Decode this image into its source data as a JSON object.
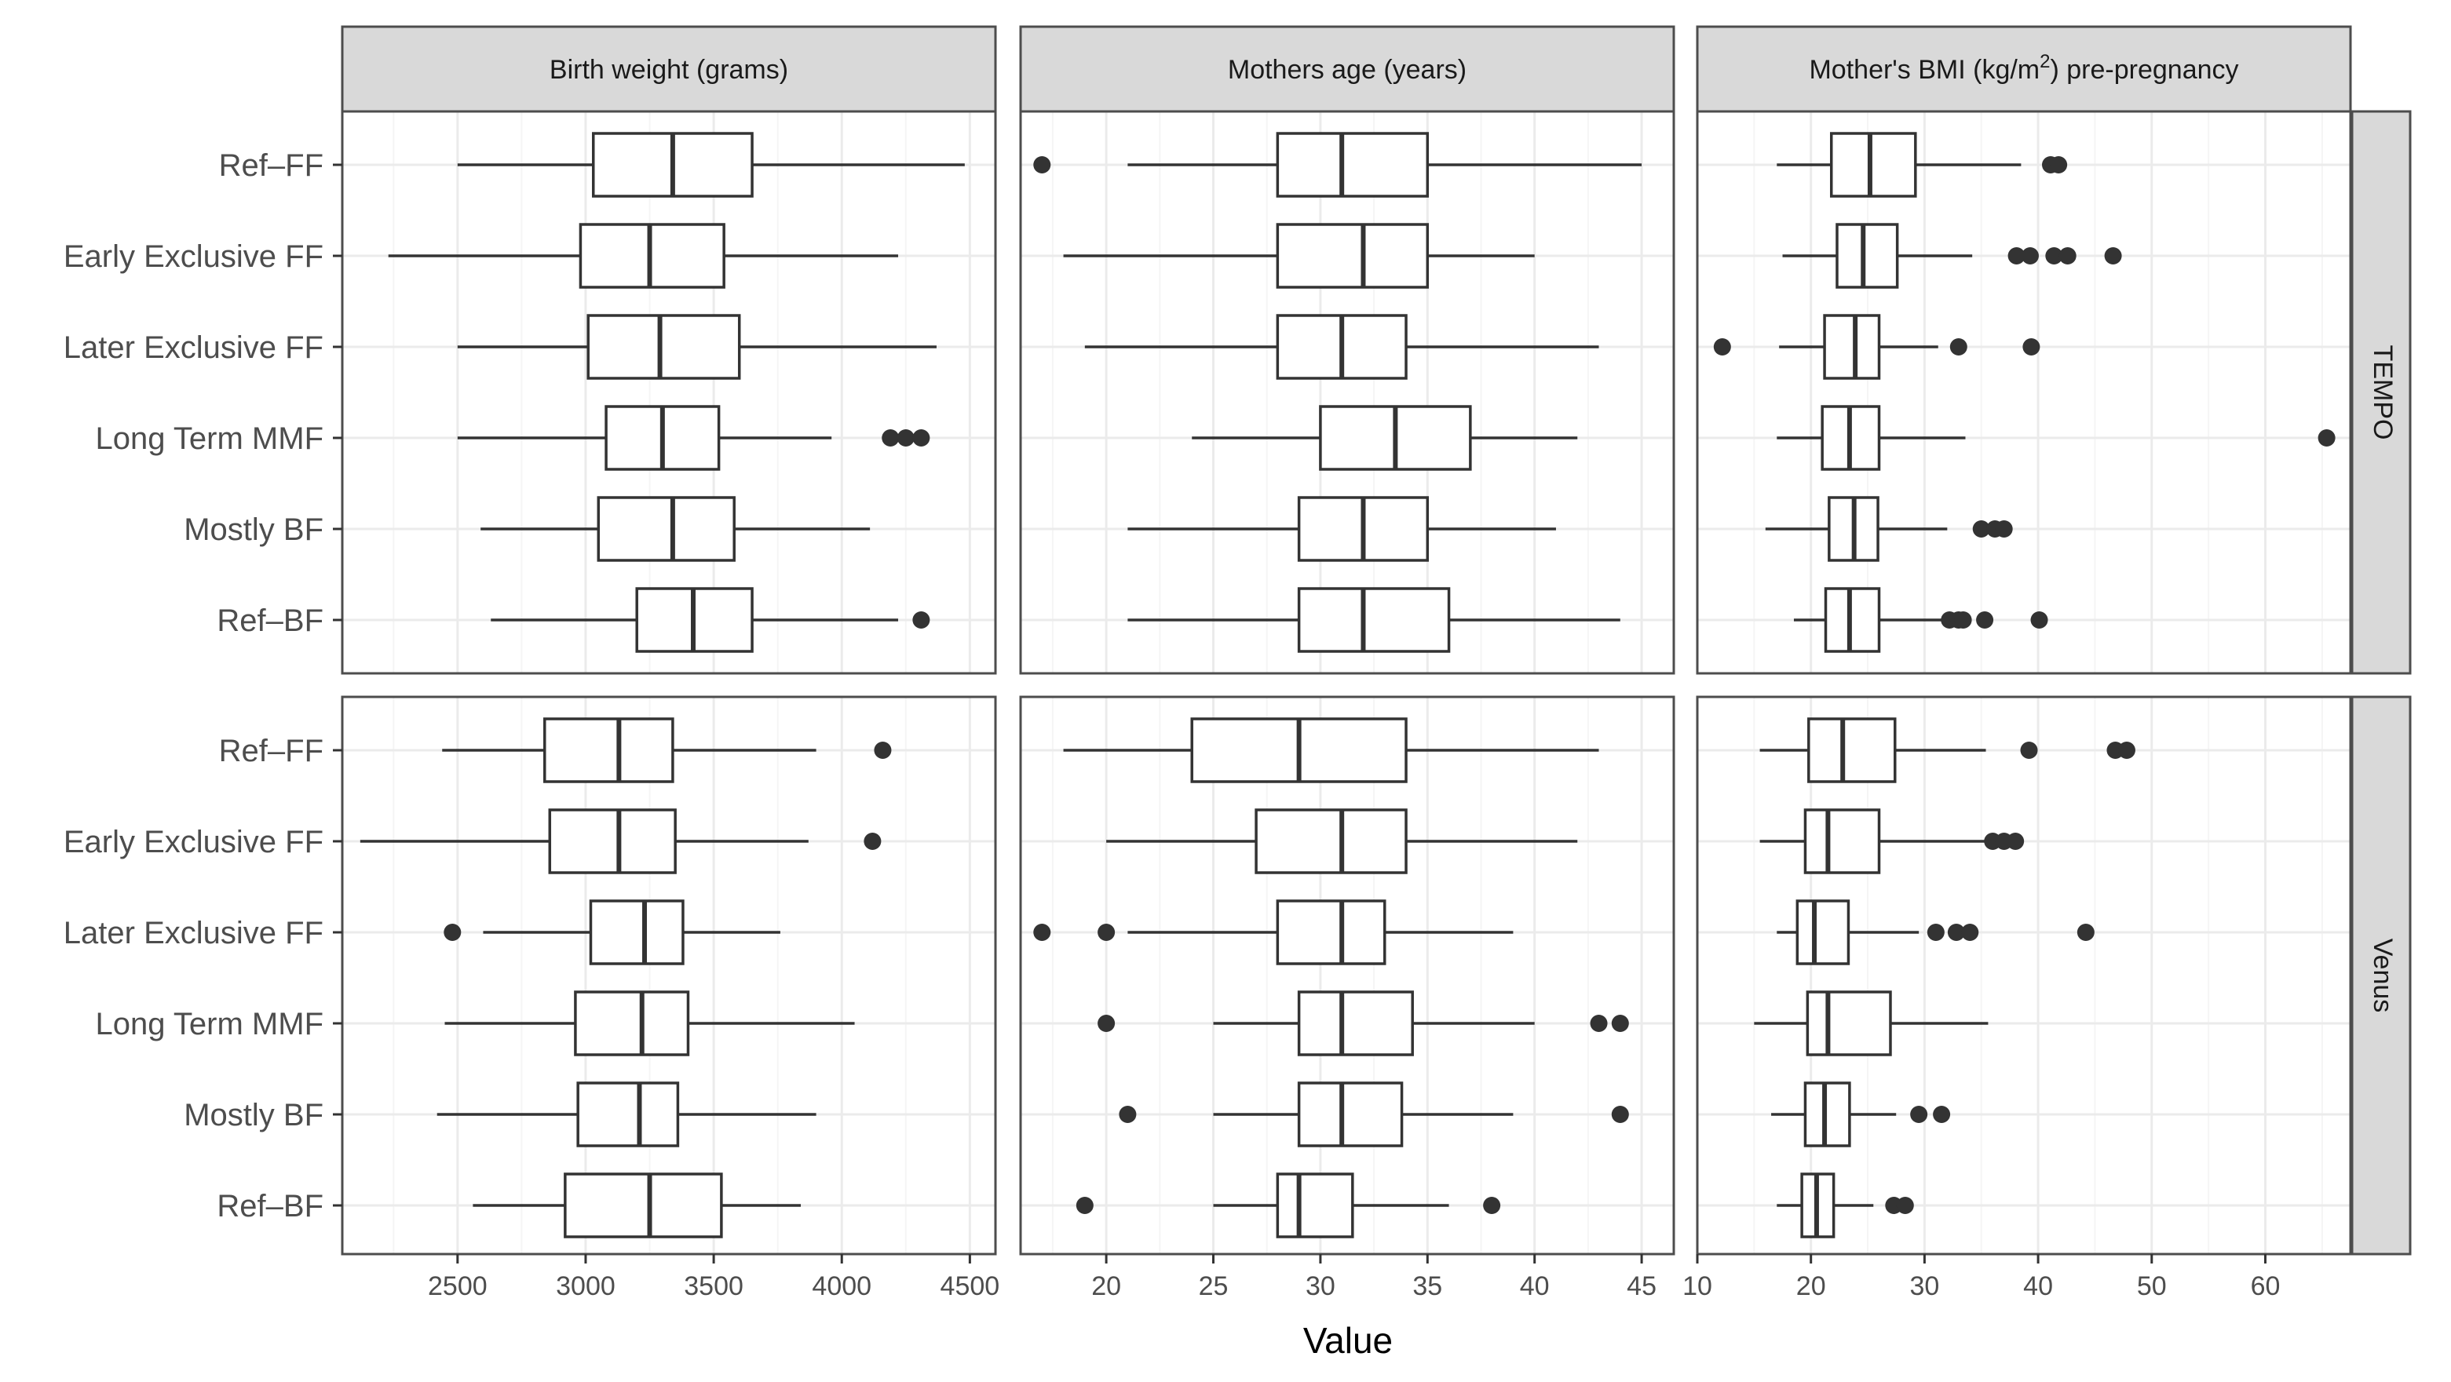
{
  "chart_data": {
    "type": "boxplot",
    "orientation": "horizontal",
    "xlabel": "Value",
    "ylabel": "",
    "categories": [
      "Ref–FF",
      "Early Exclusive FF",
      "Later Exclusive FF",
      "Long Term MMF",
      "Mostly BF",
      "Ref–BF"
    ],
    "colors": {
      "box_stroke": "#333333",
      "outlier": "#333333",
      "strip_fill": "#d9d9d9",
      "panel_border": "#4d4d4d",
      "grid_major": "#ebebeb",
      "grid_minor": "#f5f5f5"
    },
    "facet_columns": [
      {
        "title_pre": "Birth weight (grams)",
        "title_sup": "",
        "title_post": "",
        "xlim": [
          2050,
          4600
        ],
        "ticks": [
          2500,
          3000,
          3500,
          4000,
          4500
        ]
      },
      {
        "title_pre": "Mothers age (years)",
        "title_sup": "",
        "title_post": "",
        "xlim": [
          16,
          46.5
        ],
        "ticks": [
          20,
          25,
          30,
          35,
          40,
          45
        ]
      },
      {
        "title_pre": "Mother's BMI (kg/m",
        "title_sup": "2",
        "title_post": ") pre-pregnancy",
        "xlim": [
          10,
          67.5
        ],
        "ticks": [
          10,
          20,
          30,
          40,
          50,
          60
        ]
      }
    ],
    "facet_rows": [
      "TEMPO",
      "Venus"
    ],
    "panels": [
      [
        [
          {
            "category": "Ref–FF",
            "whisker_low": 2500,
            "q1": 3030,
            "median": 3340,
            "q3": 3650,
            "whisker_high": 4480,
            "outliers": []
          },
          {
            "category": "Early Exclusive FF",
            "whisker_low": 2230,
            "q1": 2980,
            "median": 3250,
            "q3": 3540,
            "whisker_high": 4220,
            "outliers": []
          },
          {
            "category": "Later Exclusive FF",
            "whisker_low": 2500,
            "q1": 3010,
            "median": 3290,
            "q3": 3600,
            "whisker_high": 4370,
            "outliers": []
          },
          {
            "category": "Long Term MMF",
            "whisker_low": 2500,
            "q1": 3080,
            "median": 3300,
            "q3": 3520,
            "whisker_high": 3960,
            "outliers": [
              4190,
              4250,
              4310
            ]
          },
          {
            "category": "Mostly BF",
            "whisker_low": 2590,
            "q1": 3050,
            "median": 3340,
            "q3": 3580,
            "whisker_high": 4110,
            "outliers": []
          },
          {
            "category": "Ref–BF",
            "whisker_low": 2630,
            "q1": 3200,
            "median": 3420,
            "q3": 3650,
            "whisker_high": 4220,
            "outliers": [
              4310
            ]
          }
        ],
        [
          {
            "category": "Ref–FF",
            "whisker_low": 21,
            "q1": 28,
            "median": 31,
            "q3": 35,
            "whisker_high": 45,
            "outliers": [
              17
            ]
          },
          {
            "category": "Early Exclusive FF",
            "whisker_low": 18,
            "q1": 28,
            "median": 32,
            "q3": 35,
            "whisker_high": 40,
            "outliers": []
          },
          {
            "category": "Later Exclusive FF",
            "whisker_low": 19,
            "q1": 28,
            "median": 31,
            "q3": 34,
            "whisker_high": 43,
            "outliers": []
          },
          {
            "category": "Long Term MMF",
            "whisker_low": 24,
            "q1": 30,
            "median": 33.5,
            "q3": 37,
            "whisker_high": 42,
            "outliers": []
          },
          {
            "category": "Mostly BF",
            "whisker_low": 21,
            "q1": 29,
            "median": 32,
            "q3": 35,
            "whisker_high": 41,
            "outliers": []
          },
          {
            "category": "Ref–BF",
            "whisker_low": 21,
            "q1": 29,
            "median": 32,
            "q3": 36,
            "whisker_high": 44,
            "outliers": []
          }
        ],
        [
          {
            "category": "Ref–FF",
            "whisker_low": 17,
            "q1": 21.8,
            "median": 25.2,
            "q3": 29.2,
            "whisker_high": 38.5,
            "outliers": [
              41.1,
              41.8
            ]
          },
          {
            "category": "Early Exclusive FF",
            "whisker_low": 17.5,
            "q1": 22.3,
            "median": 24.6,
            "q3": 27.6,
            "whisker_high": 34.2,
            "outliers": [
              38.1,
              39.3,
              41.4,
              42.6,
              46.6
            ]
          },
          {
            "category": "Later Exclusive FF",
            "whisker_low": 17.2,
            "q1": 21.2,
            "median": 23.9,
            "q3": 26,
            "whisker_high": 31.2,
            "outliers": [
              12.2,
              33,
              39.4
            ]
          },
          {
            "category": "Long Term MMF",
            "whisker_low": 17,
            "q1": 21,
            "median": 23.4,
            "q3": 26,
            "whisker_high": 33.6,
            "outliers": [
              65.4
            ]
          },
          {
            "category": "Mostly BF",
            "whisker_low": 16,
            "q1": 21.6,
            "median": 23.8,
            "q3": 25.9,
            "whisker_high": 32,
            "outliers": [
              35,
              36.2,
              37
            ]
          },
          {
            "category": "Ref–BF",
            "whisker_low": 18.5,
            "q1": 21.3,
            "median": 23.4,
            "q3": 26,
            "whisker_high": 31.6,
            "outliers": [
              32.2,
              33,
              33.4,
              35.3,
              40.1
            ]
          }
        ]
      ],
      [
        [
          {
            "category": "Ref–FF",
            "whisker_low": 2440,
            "q1": 2840,
            "median": 3130,
            "q3": 3340,
            "whisker_high": 3900,
            "outliers": [
              4160
            ]
          },
          {
            "category": "Early Exclusive FF",
            "whisker_low": 2120,
            "q1": 2860,
            "median": 3130,
            "q3": 3350,
            "whisker_high": 3870,
            "outliers": [
              4120
            ]
          },
          {
            "category": "Later Exclusive FF",
            "whisker_low": 2600,
            "q1": 3020,
            "median": 3230,
            "q3": 3380,
            "whisker_high": 3760,
            "outliers": [
              2480
            ]
          },
          {
            "category": "Long Term MMF",
            "whisker_low": 2450,
            "q1": 2960,
            "median": 3220,
            "q3": 3400,
            "whisker_high": 4050,
            "outliers": []
          },
          {
            "category": "Mostly BF",
            "whisker_low": 2420,
            "q1": 2970,
            "median": 3210,
            "q3": 3360,
            "whisker_high": 3900,
            "outliers": []
          },
          {
            "category": "Ref–BF",
            "whisker_low": 2560,
            "q1": 2920,
            "median": 3250,
            "q3": 3530,
            "whisker_high": 3840,
            "outliers": []
          }
        ],
        [
          {
            "category": "Ref–FF",
            "whisker_low": 18,
            "q1": 24,
            "median": 29,
            "q3": 34,
            "whisker_high": 43,
            "outliers": []
          },
          {
            "category": "Early Exclusive FF",
            "whisker_low": 20,
            "q1": 27,
            "median": 31,
            "q3": 34,
            "whisker_high": 42,
            "outliers": []
          },
          {
            "category": "Later Exclusive FF",
            "whisker_low": 21,
            "q1": 28,
            "median": 31,
            "q3": 33,
            "whisker_high": 39,
            "outliers": [
              17,
              20
            ]
          },
          {
            "category": "Long Term MMF",
            "whisker_low": 25,
            "q1": 29,
            "median": 31,
            "q3": 34.3,
            "whisker_high": 40,
            "outliers": [
              20,
              43,
              44
            ]
          },
          {
            "category": "Mostly BF",
            "whisker_low": 25,
            "q1": 29,
            "median": 31,
            "q3": 33.8,
            "whisker_high": 39,
            "outliers": [
              21,
              44
            ]
          },
          {
            "category": "Ref–BF",
            "whisker_low": 25,
            "q1": 28,
            "median": 29,
            "q3": 31.5,
            "whisker_high": 36,
            "outliers": [
              19,
              38
            ]
          }
        ],
        [
          {
            "category": "Ref–FF",
            "whisker_low": 15.5,
            "q1": 19.8,
            "median": 22.8,
            "q3": 27.4,
            "whisker_high": 35.4,
            "outliers": [
              39.2,
              46.8,
              47.8
            ]
          },
          {
            "category": "Early Exclusive FF",
            "whisker_low": 15.5,
            "q1": 19.5,
            "median": 21.5,
            "q3": 26,
            "whisker_high": 35.5,
            "outliers": [
              36,
              37,
              38
            ]
          },
          {
            "category": "Later Exclusive FF",
            "whisker_low": 17,
            "q1": 18.8,
            "median": 20.3,
            "q3": 23.3,
            "whisker_high": 29.5,
            "outliers": [
              31,
              32.8,
              34,
              44.2
            ]
          },
          {
            "category": "Long Term MMF",
            "whisker_low": 15,
            "q1": 19.7,
            "median": 21.5,
            "q3": 27,
            "whisker_high": 35.6,
            "outliers": []
          },
          {
            "category": "Mostly BF",
            "whisker_low": 16.5,
            "q1": 19.5,
            "median": 21.2,
            "q3": 23.4,
            "whisker_high": 27.5,
            "outliers": [
              29.5,
              31.5
            ]
          },
          {
            "category": "Ref–BF",
            "whisker_low": 17,
            "q1": 19.2,
            "median": 20.5,
            "q3": 22,
            "whisker_high": 25.5,
            "outliers": [
              27.3,
              28.3
            ]
          }
        ]
      ]
    ]
  }
}
